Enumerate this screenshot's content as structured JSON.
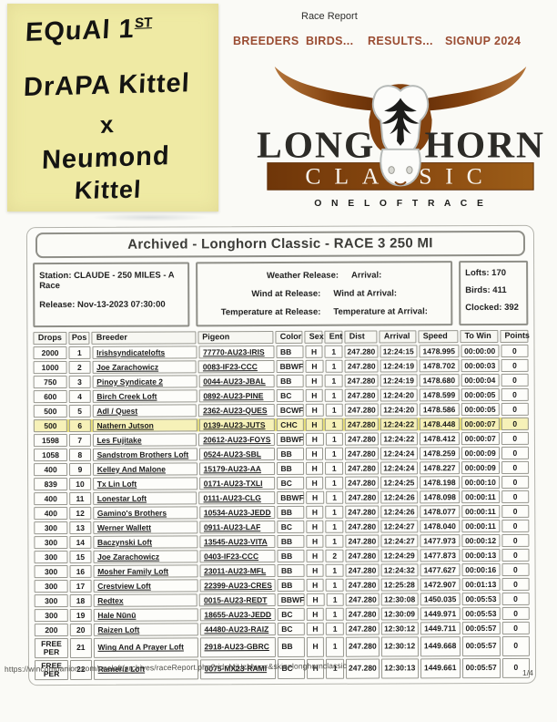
{
  "note": {
    "line1": "EQuAl 1",
    "line1_sup": "ST",
    "line2": "DrAPA Kittel",
    "line3": "x",
    "line4": "Neumond",
    "line5": "Kittel"
  },
  "header": {
    "report_label": "Race Report"
  },
  "nav": {
    "items": [
      "BREEDERS",
      "BIRDS...",
      "RESULTS...",
      "SIGNUP 2024"
    ]
  },
  "logo": {
    "word_left": "LONG",
    "word_right": "HORN",
    "classic": "CLASSIC",
    "tagline": "O N E   L O F T   R A C E"
  },
  "report": {
    "title": "Archived - Longhorn Classic - RACE 3 250 MI",
    "station": "Station: CLAUDE - 250 MILES - A Race",
    "release": "Release: Nov-13-2023 07:30:00",
    "weather_release": "Weather Release:",
    "arrival": "Arrival:",
    "wind_release": "Wind at Release:",
    "wind_arrival": "Wind at Arrival:",
    "temp_release": "Temperature at Release:",
    "temp_arrival": "Temperature at Arrival:",
    "lofts": "Lofts: 170",
    "birds": "Birds: 411",
    "clocked": "Clocked: 392"
  },
  "table": {
    "headers": [
      "Drops",
      "Pos",
      "Breeder",
      "Pigeon",
      "Color",
      "Sex",
      "Ent",
      "Dist",
      "Arrival",
      "Speed",
      "To Win",
      "Points"
    ],
    "highlight_positions": [
      6
    ],
    "rows": [
      [
        "2000",
        "1",
        "Irishsyndicatelofts",
        "77770-AU23-IRIS",
        "BB",
        "H",
        "1",
        "247.280",
        "12:24:15",
        "1478.995",
        "00:00:00",
        "0"
      ],
      [
        "1000",
        "2",
        "Joe Zarachowicz",
        "0083-IF23-CCC",
        "BBWF",
        "H",
        "1",
        "247.280",
        "12:24:19",
        "1478.702",
        "00:00:03",
        "0"
      ],
      [
        "750",
        "3",
        "Pinoy Syndicate 2",
        "0044-AU23-JBAL",
        "BB",
        "H",
        "1",
        "247.280",
        "12:24:19",
        "1478.680",
        "00:00:04",
        "0"
      ],
      [
        "600",
        "4",
        "Birch Creek Loft",
        "0892-AU23-PINE",
        "BC",
        "H",
        "1",
        "247.280",
        "12:24:20",
        "1478.599",
        "00:00:05",
        "0"
      ],
      [
        "500",
        "5",
        "Adl / Quest",
        "2362-AU23-QUES",
        "BCWF",
        "H",
        "1",
        "247.280",
        "12:24:20",
        "1478.586",
        "00:00:05",
        "0"
      ],
      [
        "500",
        "6",
        "Nathern Jutson",
        "0139-AU23-JUTS",
        "CHC",
        "H",
        "1",
        "247.280",
        "12:24:22",
        "1478.448",
        "00:00:07",
        "0"
      ],
      [
        "1598",
        "7",
        "Les Fujitake",
        "20612-AU23-FOYS",
        "BBWF",
        "H",
        "1",
        "247.280",
        "12:24:22",
        "1478.412",
        "00:00:07",
        "0"
      ],
      [
        "1058",
        "8",
        "Sandstrom Brothers Loft",
        "0524-AU23-SBL",
        "BB",
        "H",
        "1",
        "247.280",
        "12:24:24",
        "1478.259",
        "00:00:09",
        "0"
      ],
      [
        "400",
        "9",
        "Kelley And Malone",
        "15179-AU23-AA",
        "BB",
        "H",
        "1",
        "247.280",
        "12:24:24",
        "1478.227",
        "00:00:09",
        "0"
      ],
      [
        "839",
        "10",
        "Tx Lin Loft",
        "0171-AU23-TXLI",
        "BC",
        "H",
        "1",
        "247.280",
        "12:24:25",
        "1478.198",
        "00:00:10",
        "0"
      ],
      [
        "400",
        "11",
        "Lonestar Loft",
        "0111-AU23-CLG",
        "BBWF",
        "H",
        "1",
        "247.280",
        "12:24:26",
        "1478.098",
        "00:00:11",
        "0"
      ],
      [
        "400",
        "12",
        "Gamino's Brothers",
        "10534-AU23-JEDD",
        "BB",
        "H",
        "1",
        "247.280",
        "12:24:26",
        "1478.077",
        "00:00:11",
        "0"
      ],
      [
        "300",
        "13",
        "Werner Wallett",
        "0911-AU23-LAF",
        "BC",
        "H",
        "1",
        "247.280",
        "12:24:27",
        "1478.040",
        "00:00:11",
        "0"
      ],
      [
        "300",
        "14",
        "Baczynski Loft",
        "13545-AU23-VITA",
        "BB",
        "H",
        "1",
        "247.280",
        "12:24:27",
        "1477.973",
        "00:00:12",
        "0"
      ],
      [
        "300",
        "15",
        "Joe Zarachowicz",
        "0403-IF23-CCC",
        "BB",
        "H",
        "2",
        "247.280",
        "12:24:29",
        "1477.873",
        "00:00:13",
        "0"
      ],
      [
        "300",
        "16",
        "Mosher Family Loft",
        "23011-AU23-MFL",
        "BB",
        "H",
        "1",
        "247.280",
        "12:24:32",
        "1477.627",
        "00:00:16",
        "0"
      ],
      [
        "300",
        "17",
        "Crestview Loft",
        "22399-AU23-CRES",
        "BB",
        "H",
        "1",
        "247.280",
        "12:25:28",
        "1472.907",
        "00:01:13",
        "0"
      ],
      [
        "300",
        "18",
        "Redtex",
        "0015-AU23-REDT",
        "BBWF",
        "H",
        "1",
        "247.280",
        "12:30:08",
        "1450.035",
        "00:05:53",
        "0"
      ],
      [
        "300",
        "19",
        "Hale Nūnū",
        "18655-AU23-JEDD",
        "BC",
        "H",
        "1",
        "247.280",
        "12:30:09",
        "1449.971",
        "00:05:53",
        "0"
      ],
      [
        "200",
        "20",
        "Raizen Loft",
        "44480-AU23-RAIZ",
        "BC",
        "H",
        "1",
        "247.280",
        "12:30:12",
        "1449.711",
        "00:05:57",
        "0"
      ],
      [
        "FREE PER",
        "21",
        "Wing And A Prayer Loft",
        "2918-AU23-GBRC",
        "BB",
        "H",
        "1",
        "247.280",
        "12:30:12",
        "1449.668",
        "00:05:57",
        "0"
      ],
      [
        "FREE PER",
        "22",
        "Rameriz Loft",
        "0075-MX23-RAMI",
        "BC",
        "H",
        "1",
        "247.280",
        "12:30:13",
        "1449.661",
        "00:05:57",
        "0"
      ]
    ]
  },
  "footer": {
    "url": "https://wincompanion.com/oneloft/archives/raceReport.php?rid=MjUzMw==&skin=longhornclassic",
    "page": "1/4"
  },
  "colors": {
    "nav_brown": "#9a4c32",
    "sticky_yellow": "#efeaa4",
    "highlight_yellow": "#f6f1b8",
    "logo_horn_dark": "#5e2a07",
    "logo_horn_light": "#b4753a",
    "logo_bar_left": "#6f3609",
    "logo_bar_right": "#9c5d18",
    "logo_text_black": "#2c2b27"
  }
}
